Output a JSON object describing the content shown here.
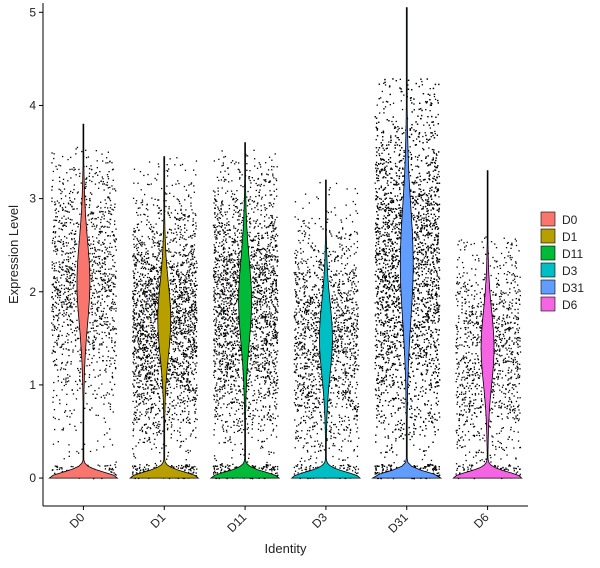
{
  "chart_data": {
    "type": "violin",
    "xlabel": "Identity",
    "ylabel": "Expression Level",
    "ylim": [
      -0.3,
      5.1
    ],
    "yticks": [
      0,
      1,
      2,
      3,
      4,
      5
    ],
    "categories": [
      "D0",
      "D1",
      "D11",
      "D3",
      "D31",
      "D6"
    ],
    "legend_position": "right",
    "point_color": "#000000",
    "series": [
      {
        "name": "D0",
        "color": "#F8766D",
        "max": 3.8,
        "zero_peak": 0.3,
        "body_center": 2.1,
        "body_spread": 0.75,
        "jitter_max": 3.6,
        "cells": 1400
      },
      {
        "name": "D1",
        "color": "#B79F00",
        "max": 3.45,
        "zero_peak": 0.3,
        "body_center": 1.7,
        "body_spread": 0.65,
        "jitter_max": 3.45,
        "cells": 2600
      },
      {
        "name": "D11",
        "color": "#00BA38",
        "max": 3.6,
        "zero_peak": 0.3,
        "body_center": 1.9,
        "body_spread": 0.75,
        "jitter_max": 3.55,
        "cells": 2600
      },
      {
        "name": "D3",
        "color": "#00BFC4",
        "max": 3.2,
        "zero_peak": 0.28,
        "body_center": 1.5,
        "body_spread": 0.65,
        "jitter_max": 3.2,
        "cells": 1700
      },
      {
        "name": "D31",
        "color": "#619CFF",
        "max": 5.05,
        "zero_peak": 0.3,
        "body_center": 2.3,
        "body_spread": 1.0,
        "jitter_max": 4.3,
        "cells": 4200
      },
      {
        "name": "D6",
        "color": "#F564E3",
        "max": 3.3,
        "zero_peak": 0.3,
        "body_center": 1.4,
        "body_spread": 0.65,
        "jitter_max": 2.6,
        "cells": 1200
      }
    ]
  }
}
